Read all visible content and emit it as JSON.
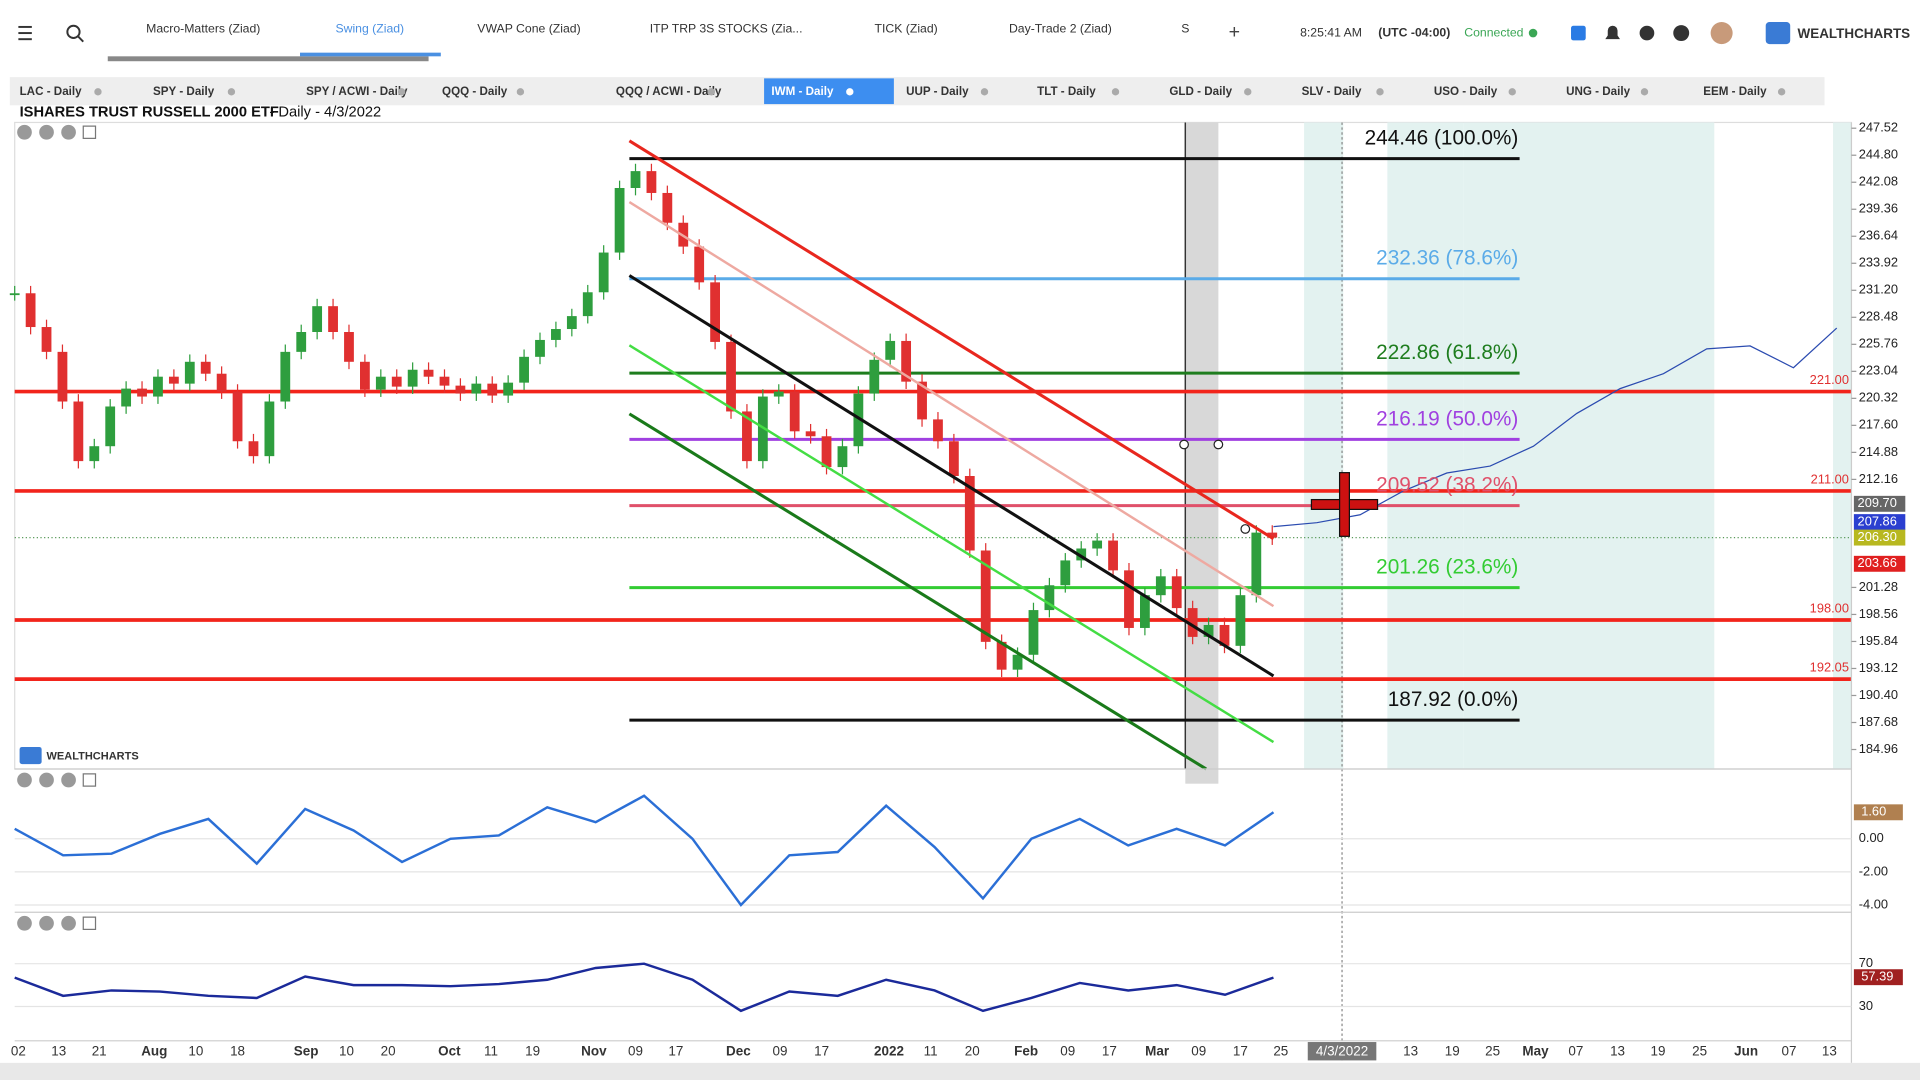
{
  "top_bar": {
    "tabs": [
      "Macro-Matters (Ziad)",
      "Swing (Ziad)",
      "VWAP Cone (Ziad)",
      "ITP TRP 3S STOCKS (Zia...",
      "TICK (Ziad)",
      "Day-Trade 2 (Ziad)",
      "S"
    ],
    "time": "8:25:41 AM",
    "timezone": "(UTC -04:00)",
    "status": "Connected",
    "brand": "WEALTHCHARTS"
  },
  "chart_tabs": [
    "LAC - Daily",
    "SPY - Daily",
    "SPY / ACWI - Daily",
    "QQQ - Daily",
    "QQQ / ACWI - Daily",
    "IWM - Daily",
    "UUP - Daily",
    "TLT - Daily",
    "GLD - Daily",
    "SLV - Daily",
    "USO - Daily",
    "UNG - Daily",
    "EEM - Daily"
  ],
  "chart": {
    "title": "ISHARES TRUST RUSSELL 2000 ETF",
    "subtitle": "- Daily - 4/3/2022",
    "watermark": "WEALTHCHARTS",
    "ylim": [
      183,
      248.1
    ],
    "price_ticks": [
      247.52,
      {
        "value": 244.8,
        "label": "244.80"
      },
      242.08,
      239.36,
      236.64,
      233.92,
      {
        "value": 231.2,
        "label": "231.20"
      },
      228.48,
      225.76,
      223.04,
      220.32,
      {
        "value": 217.6,
        "label": "217.60"
      },
      214.88,
      212.16,
      201.28,
      198.56,
      195.84,
      193.12,
      {
        "value": 190.4,
        "label": "190.40"
      },
      187.68,
      184.96
    ],
    "price_flags": [
      {
        "value": 209.7,
        "label": "209.70"
      },
      207.86,
      {
        "value": 206.3,
        "label": "206.30"
      },
      203.66
    ],
    "fib_levels": [
      {
        "value": 244.46,
        "label": "244.46 (100.0%)"
      },
      {
        "value": 232.36,
        "label": "232.36 (78.6%)"
      },
      {
        "value": 222.86,
        "label": "222.86 (61.8%)"
      },
      {
        "value": 216.19,
        "label": "216.19 (50.0%)"
      },
      {
        "value": 209.52,
        "label": "209.52 (38.2%)"
      },
      {
        "value": 201.26,
        "label": "201.26 (23.6%)"
      },
      {
        "value": 187.92,
        "label": "187.92 (0.0%)"
      }
    ],
    "levels": [
      {
        "value": 221,
        "label": "221.00"
      },
      {
        "value": 211,
        "label": "211.00"
      },
      {
        "value": 198,
        "label": "198.00"
      },
      192.05
    ],
    "closes": [
      230.9,
      227.5,
      225.0,
      220,
      214,
      215.5,
      219.5,
      221.3,
      220.5,
      222.5,
      221.8,
      224,
      222.8,
      221,
      216,
      214.5,
      220,
      225,
      227,
      229.6,
      227,
      224,
      221.2,
      222.5,
      221.5,
      223.2,
      222.5,
      221.6,
      220.8,
      221.8,
      220.6,
      221.9,
      224.5,
      226.2,
      227.3,
      228.6,
      231,
      235,
      241.5,
      243.2,
      241,
      238,
      235.6,
      232,
      226,
      219,
      214,
      220.5,
      221,
      217,
      216.5,
      213.4,
      215.5,
      220.8,
      224.2,
      226.1,
      222,
      218.2,
      216,
      212.5,
      205,
      195.8,
      193,
      194.5,
      199,
      201.5,
      204,
      205.2,
      206,
      203,
      197.2,
      200.5,
      202.4,
      199.2,
      196.3,
      197.5,
      195.4,
      200.5,
      206.8,
      206.3
    ],
    "projection": [
      207.4,
      207.8,
      208.6,
      211,
      212.8,
      213.5,
      215.5,
      218.8,
      221.3,
      222.8,
      225.3,
      225.6,
      223.4,
      227.4
    ],
    "x_labels": [
      "02",
      "13",
      "21",
      "Aug",
      "10",
      "18",
      "Sep",
      "10",
      "20",
      "Oct",
      "11",
      "19",
      "Nov",
      "09",
      "17",
      "Dec",
      "09",
      "17",
      "2022",
      "11",
      "20",
      "Feb",
      "09",
      "17",
      "Mar",
      "09",
      "17",
      "25",
      "4/3/2022",
      "13",
      "19",
      "25",
      "May",
      "07",
      "13",
      "19",
      "25",
      "Jun",
      "07",
      "13"
    ]
  },
  "oscillator_1": {
    "ylim": [
      -4.44,
      3.33
    ],
    "ticks": [
      {
        "value": 0,
        "label": "0.00"
      },
      {
        "value": -2,
        "label": "-2.00"
      },
      {
        "value": -4,
        "label": "-4.00"
      }
    ],
    "flag": {
      "value": 1.6,
      "label": "1.60"
    },
    "values": [
      0.6,
      -1.0,
      -0.9,
      0.3,
      1.2,
      -1.5,
      1.8,
      0.5,
      -1.4,
      0.0,
      0.2,
      1.9,
      1.0,
      2.6,
      0.0,
      -4.0,
      -1.0,
      -0.8,
      2.0,
      -0.5,
      -3.6,
      0.0,
      1.2,
      -0.4,
      0.6,
      -0.4,
      1.6
    ]
  },
  "oscillator_2": {
    "ylim": [
      -2,
      112.3
    ],
    "ticks": [
      70,
      30
    ],
    "flag": 57.39,
    "values": [
      57,
      40,
      45,
      44,
      40,
      38,
      58,
      50,
      50,
      49,
      51,
      55,
      66,
      70,
      55,
      26,
      44,
      40,
      55,
      45,
      26,
      38,
      52,
      45,
      50,
      41,
      57
    ]
  }
}
